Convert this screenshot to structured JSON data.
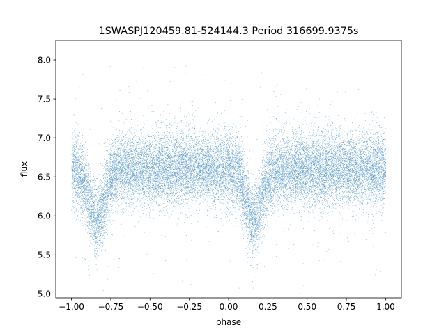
{
  "chart_data": {
    "type": "scatter",
    "title": "1SWASPJ120459.81-524144.3 Period 316699.9375s",
    "xlabel": "phase",
    "ylabel": "flux",
    "xlim": [
      -1.1,
      1.1
    ],
    "ylim": [
      4.95,
      8.25
    ],
    "xticks": [
      -1.0,
      -0.75,
      -0.5,
      -0.25,
      0.0,
      0.25,
      0.5,
      0.75,
      1.0
    ],
    "xtick_labels": [
      "−1.00",
      "−0.75",
      "−0.50",
      "−0.25",
      "0.00",
      "0.25",
      "0.50",
      "0.75",
      "1.00"
    ],
    "yticks": [
      5.0,
      5.5,
      6.0,
      6.5,
      7.0,
      7.5,
      8.0
    ],
    "ytick_labels": [
      "5.0",
      "5.5",
      "6.0",
      "6.5",
      "7.0",
      "7.5",
      "8.0"
    ],
    "grid": false,
    "marker_color": "#1f77b4",
    "baseline_flux": 6.6,
    "phase_range": [
      -1.0,
      1.0
    ],
    "eclipses": [
      {
        "phase": -0.84,
        "depth": 0.65,
        "width": 0.05
      },
      {
        "phase": 0.16,
        "depth": 0.65,
        "width": 0.05
      }
    ]
  }
}
